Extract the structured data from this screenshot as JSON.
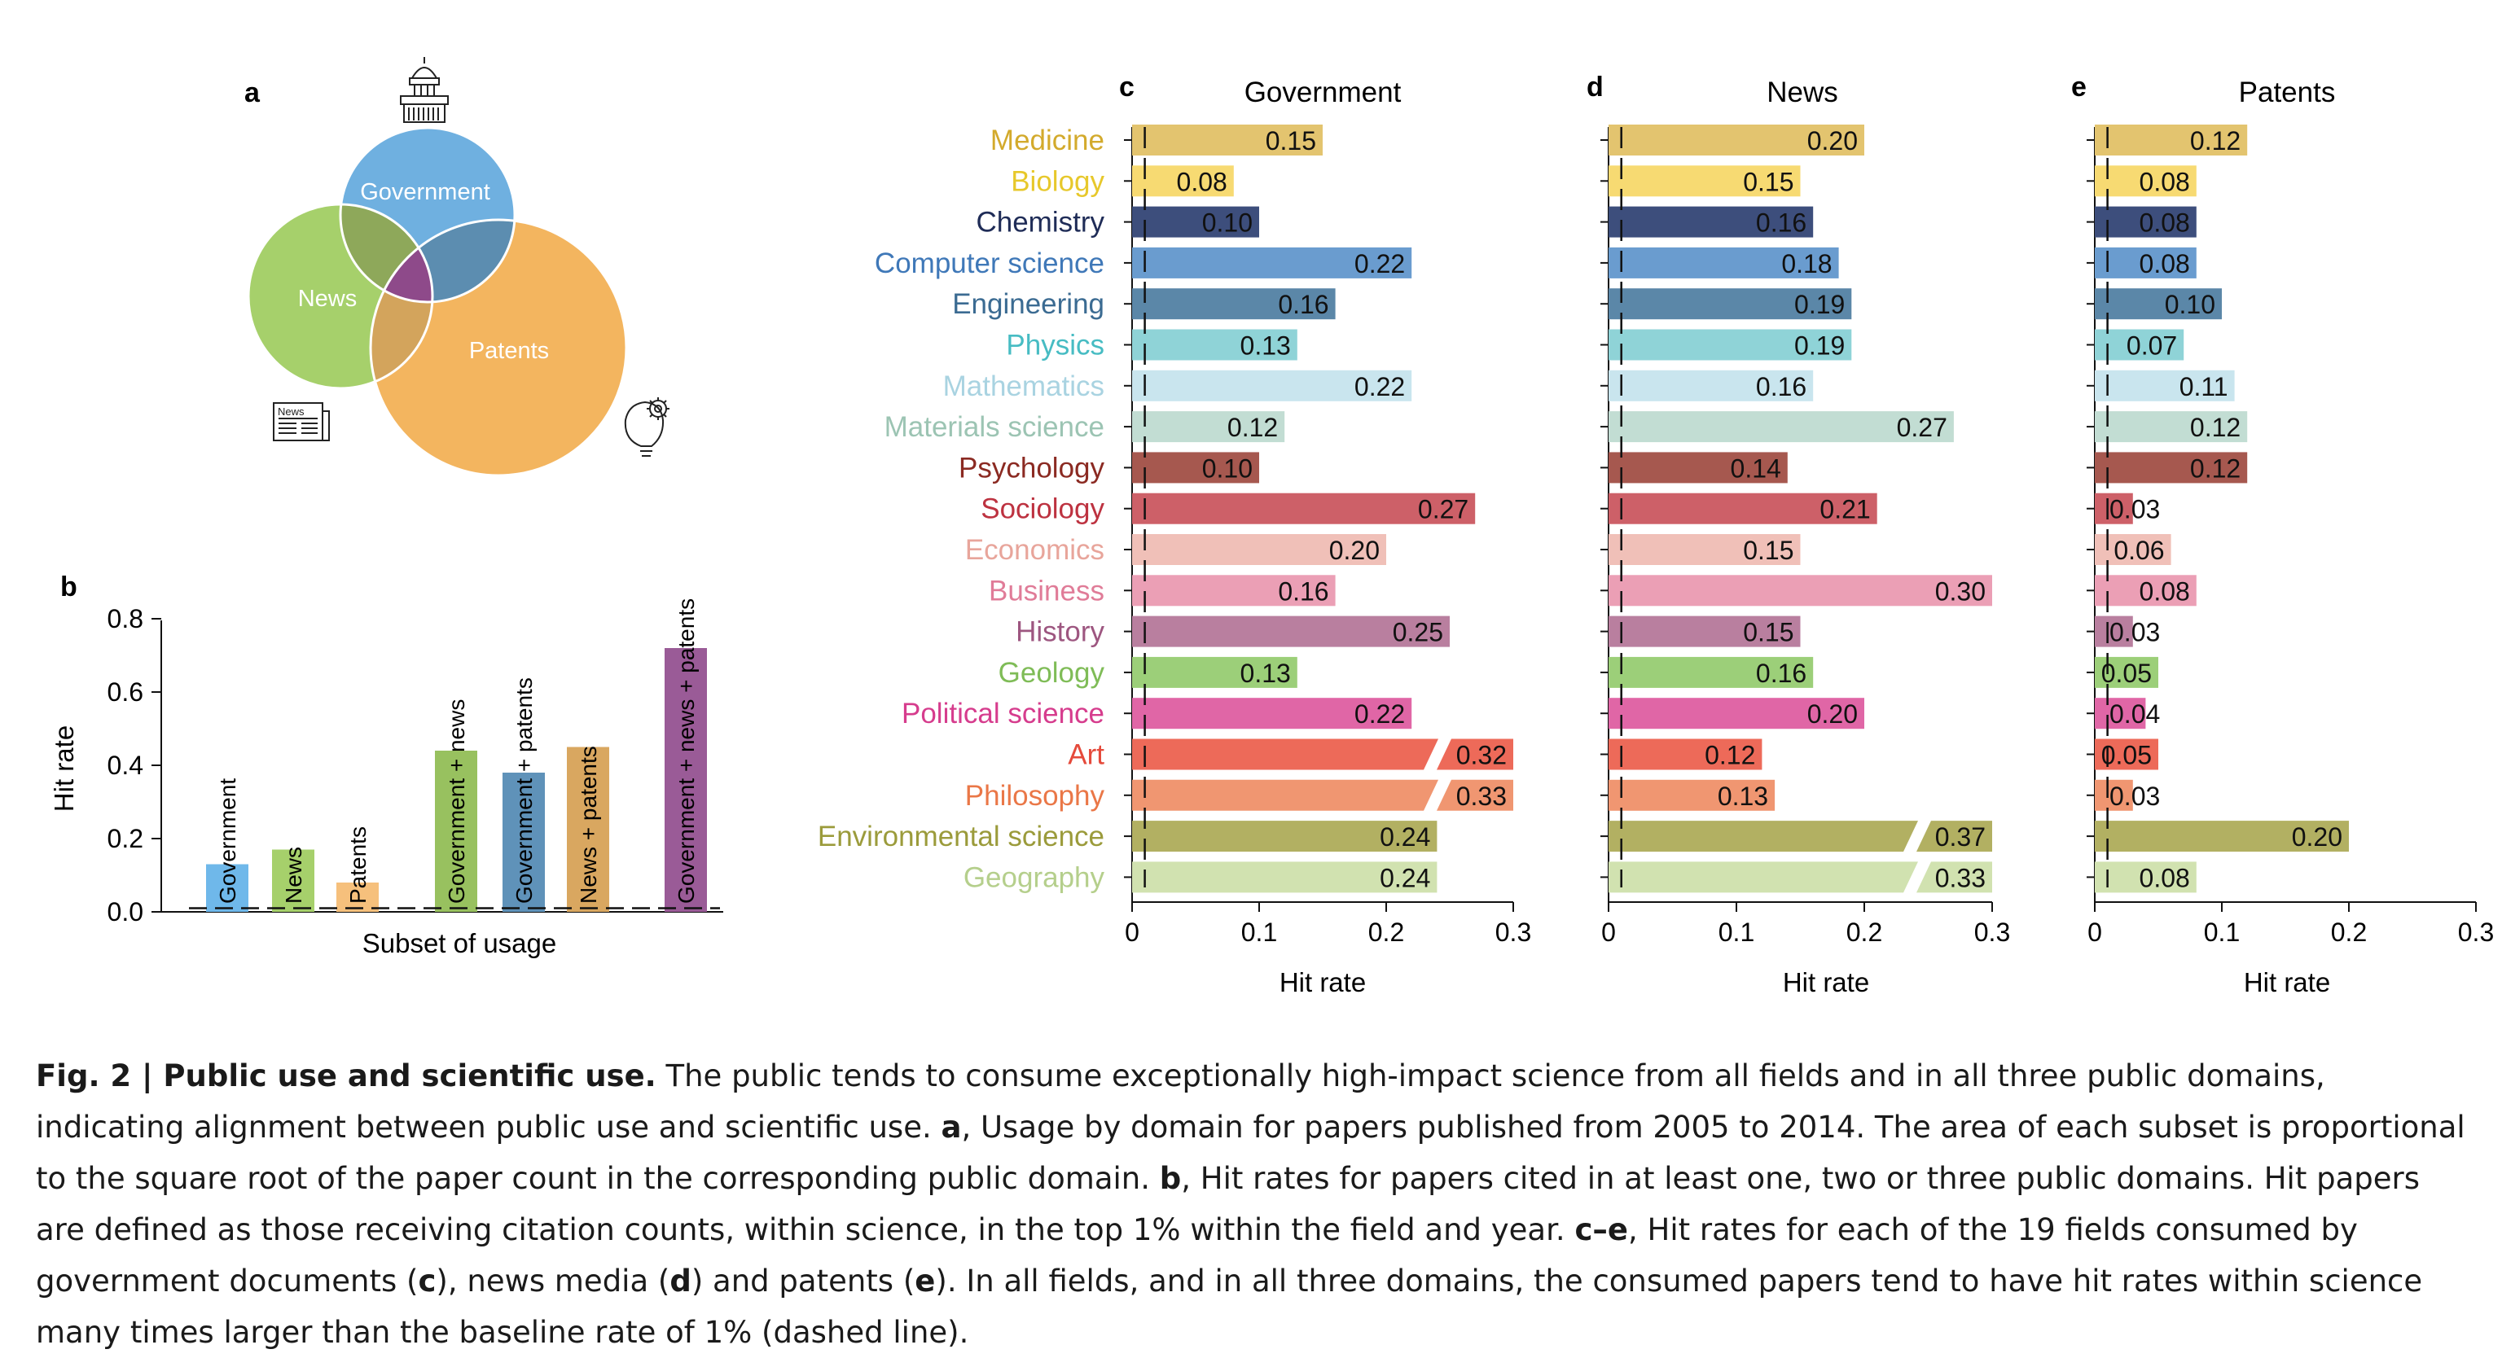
{
  "panel_letters": {
    "a": "a",
    "b": "b",
    "c": "c",
    "d": "d",
    "e": "e"
  },
  "colors": {
    "Medicine": "#e3c46f",
    "Biology": "#f7da72",
    "Chemistry": "#3d4e7c",
    "Computer science": "#6a9ccf",
    "Engineering": "#5b87a8",
    "Physics": "#8fd3d7",
    "Mathematics": "#c9e5ee",
    "Materials science": "#c2ddd3",
    "Psychology": "#a6584f",
    "Sociology": "#cd6068",
    "Economics": "#f0c0b8",
    "Business": "#eb9fb5",
    "History": "#b97f9f",
    "Geology": "#9ccf79",
    "Political science": "#e066a6",
    "Art": "#ed6a59",
    "Philosophy": "#f09671",
    "Environmental science": "#b2b062",
    "Geography": "#d1e2b0",
    "label_Medicine": "#d3aa2c",
    "label_Biology": "#e7c82b",
    "label_Chemistry": "#1f2c57",
    "label_Computer science": "#3f78b8",
    "label_Engineering": "#3b6b92",
    "label_Physics": "#47bcc3",
    "label_Mathematics": "#a9d3e1",
    "label_Materials science": "#9cc4b3",
    "label_Psychology": "#8b2a22",
    "label_Sociology": "#bd3240",
    "label_Economics": "#e8a59b",
    "label_Business": "#e07c98",
    "label_History": "#9d5680",
    "label_Geology": "#7fbc57",
    "label_Political science": "#d63c8d",
    "label_Art": "#e54a3b",
    "label_Philosophy": "#ea7747",
    "label_Environmental science": "#9b9b3b",
    "label_Geography": "#b5cf8c",
    "venn_government": "#6fb0e0",
    "venn_news": "#a6d06b",
    "venn_patents": "#f3b55f",
    "venn_gov_news": "#8ea85a",
    "venn_gov_patents": "#5c8db0",
    "venn_news_patents": "#d3a45c",
    "venn_all": "#8e4a8a",
    "bar_government": "#6fb8ea",
    "bar_news": "#a6d06b",
    "bar_patents": "#f6c07c",
    "bar_gov_news": "#98c15f",
    "bar_gov_patents": "#5f92b9",
    "bar_news_patents": "#d9a760",
    "bar_all": "#9a5b97"
  },
  "venn": {
    "labels": {
      "government": "Government",
      "news": "News",
      "patents": "Patents"
    },
    "icons": [
      "capitol-icon",
      "newspaper-icon",
      "lightbulb-gear-icon"
    ],
    "newspaper_icon_text": "News"
  },
  "chart_data": [
    {
      "panel": "b",
      "type": "bar",
      "xlabel": "Subset of usage",
      "ylabel": "Hit rate",
      "ylim": [
        0,
        0.8
      ],
      "yticks": [
        "0.0",
        "0.2",
        "0.4",
        "0.6",
        "0.8"
      ],
      "categories": [
        "Government",
        "News",
        "Patents",
        "Government + news",
        "Government + patents",
        "News + patents",
        "Government + news + patents"
      ],
      "values": [
        0.13,
        0.17,
        0.08,
        0.44,
        0.38,
        0.45,
        0.72
      ],
      "baseline": 0.01,
      "grid": false
    },
    {
      "panel": "c",
      "type": "bar",
      "orientation": "horizontal",
      "title": "Government",
      "xlabel": "Hit rate",
      "xlim": [
        0,
        0.3
      ],
      "xticks": [
        "0",
        "0.1",
        "0.2",
        "0.3"
      ],
      "baseline": 0.01,
      "categories": [
        "Medicine",
        "Biology",
        "Chemistry",
        "Computer science",
        "Engineering",
        "Physics",
        "Mathematics",
        "Materials science",
        "Psychology",
        "Sociology",
        "Economics",
        "Business",
        "History",
        "Geology",
        "Political science",
        "Art",
        "Philosophy",
        "Environmental science",
        "Geography"
      ],
      "labels": [
        "0.15",
        "0.08",
        "0.10",
        "0.22",
        "0.16",
        "0.13",
        "0.22",
        "0.12",
        "0.10",
        "0.27",
        "0.20",
        "0.16",
        "0.25",
        "0.13",
        "0.22",
        "0.32",
        "0.33",
        "0.24",
        "0.24"
      ],
      "values": [
        0.15,
        0.08,
        0.1,
        0.22,
        0.16,
        0.13,
        0.22,
        0.12,
        0.1,
        0.27,
        0.2,
        0.16,
        0.25,
        0.13,
        0.22,
        0.32,
        0.33,
        0.24,
        0.24
      ],
      "broken": [
        15,
        16
      ]
    },
    {
      "panel": "d",
      "type": "bar",
      "orientation": "horizontal",
      "title": "News",
      "xlabel": "Hit rate",
      "xlim": [
        0,
        0.3
      ],
      "xticks": [
        "0",
        "0.1",
        "0.2",
        "0.3"
      ],
      "baseline": 0.01,
      "categories": [
        "Medicine",
        "Biology",
        "Chemistry",
        "Computer science",
        "Engineering",
        "Physics",
        "Mathematics",
        "Materials science",
        "Psychology",
        "Sociology",
        "Economics",
        "Business",
        "History",
        "Geology",
        "Political science",
        "Art",
        "Philosophy",
        "Environmental science",
        "Geography"
      ],
      "labels": [
        "0.20",
        "0.15",
        "0.16",
        "0.18",
        "0.19",
        "0.19",
        "0.16",
        "0.27",
        "0.14",
        "0.21",
        "0.15",
        "0.30",
        "0.15",
        "0.16",
        "0.20",
        "0.12",
        "0.13",
        "0.37",
        "0.33"
      ],
      "values": [
        0.2,
        0.15,
        0.16,
        0.18,
        0.19,
        0.19,
        0.16,
        0.27,
        0.14,
        0.21,
        0.15,
        0.3,
        0.15,
        0.16,
        0.2,
        0.12,
        0.13,
        0.37,
        0.33
      ],
      "broken": [
        17,
        18
      ]
    },
    {
      "panel": "e",
      "type": "bar",
      "orientation": "horizontal",
      "title": "Patents",
      "xlabel": "Hit rate",
      "xlim": [
        0,
        0.3
      ],
      "xticks": [
        "0",
        "0.1",
        "0.2",
        "0.3"
      ],
      "baseline": 0.01,
      "categories": [
        "Medicine",
        "Biology",
        "Chemistry",
        "Computer science",
        "Engineering",
        "Physics",
        "Mathematics",
        "Materials science",
        "Psychology",
        "Sociology",
        "Economics",
        "Business",
        "History",
        "Geology",
        "Political science",
        "Art",
        "Philosophy",
        "Environmental science",
        "Geography"
      ],
      "labels": [
        "0.12",
        "0.08",
        "0.08",
        "0.08",
        "0.10",
        "0.07",
        "0.11",
        "0.12",
        "0.12",
        "0.03",
        "0.06",
        "0.08",
        "0.03",
        "0.05",
        "0.04",
        "0.05",
        "0.03",
        "0.20",
        "0.08"
      ],
      "values": [
        0.12,
        0.08,
        0.08,
        0.08,
        0.1,
        0.07,
        0.11,
        0.12,
        0.12,
        0.03,
        0.06,
        0.08,
        0.03,
        0.05,
        0.04,
        0.05,
        0.03,
        0.2,
        0.08
      ],
      "broken": []
    }
  ],
  "caption": {
    "title": "Fig. 2 | Public use and scientific use.",
    "text_1": " The public tends to consume exceptionally high-impact science from all fields and in all three public domains, indicating alignment between public use and scientific use. ",
    "a_label": "a",
    "text_2": ", Usage by domain for papers published from 2005 to 2014. The area of each subset is proportional to the square root of the paper count in the corresponding public domain. ",
    "b_label": "b",
    "text_3": ", Hit rates for papers cited in at least one, two or three public domains. Hit papers are defined as those receiving citation counts, within science, in the top 1% within the field and year. ",
    "ce_label": "c–e",
    "text_4": ", Hit rates for each of the 19 fields consumed by government documents (",
    "c_label": "c",
    "text_5": "), news media (",
    "d_label": "d",
    "text_6": ") and patents (",
    "e_label": "e",
    "text_7": "). In all fields, and in all three domains, the consumed papers tend to have hit rates within science many times larger than the baseline rate of 1% (dashed line)."
  }
}
